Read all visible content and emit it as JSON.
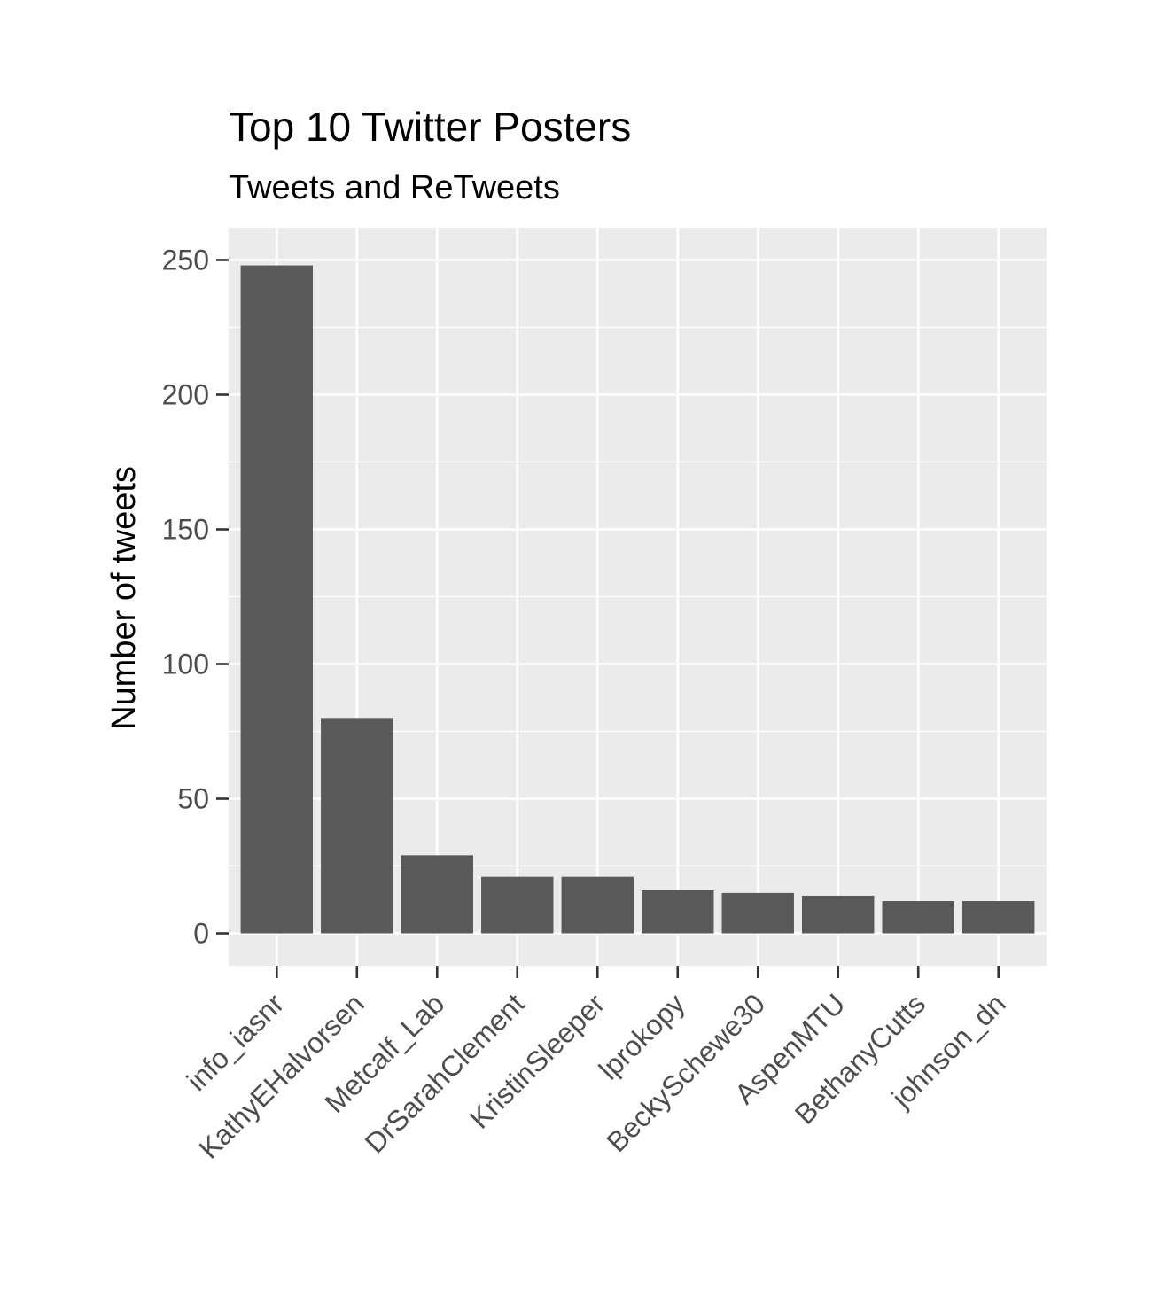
{
  "chart_data": {
    "type": "bar",
    "title": "Top 10 Twitter Posters",
    "subtitle": "Tweets and ReTweets",
    "xlabel": "",
    "ylabel": "Number of tweets",
    "categories": [
      "info_iasnr",
      "KathyEHalvorsen",
      "Metcalf_Lab",
      "DrSarahClement",
      "KristinSleeper",
      "lprokopy",
      "BeckySchewe30",
      "AspenMTU",
      "BethanyCutts",
      "johnson_dn"
    ],
    "values": [
      248,
      80,
      29,
      21,
      21,
      16,
      15,
      14,
      12,
      12
    ],
    "ylim": [
      -12,
      262
    ],
    "yticks": [
      0,
      50,
      100,
      150,
      200,
      250
    ],
    "grid": true,
    "legend": "none"
  },
  "colors": {
    "bar": "#595959",
    "panel": "#ebebeb",
    "grid": "#ffffff",
    "tick": "#333333",
    "tick_text": "#4d4d4d"
  }
}
